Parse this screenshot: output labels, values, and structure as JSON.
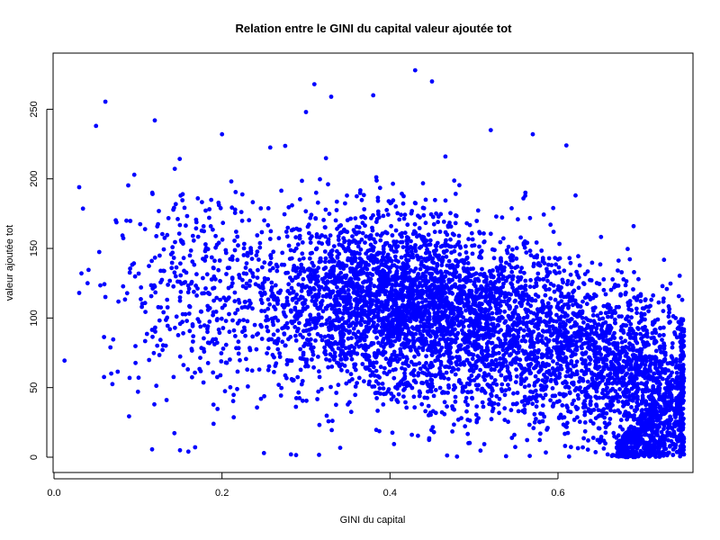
{
  "chart_data": {
    "type": "scatter",
    "title": "Relation entre le GINI du capital valeur ajoutée tot",
    "xlabel": "GINI du capital",
    "ylabel": "valeur ajoutée tot",
    "xlim": [
      0.0,
      0.75
    ],
    "ylim": [
      0,
      280
    ],
    "x_ticks": [
      "0.0",
      "0.2",
      "0.4",
      "0.6"
    ],
    "y_ticks": [
      "0",
      "50",
      "100",
      "150",
      "200",
      "250"
    ],
    "grid": false,
    "legend": "none",
    "point_color": "#0000ff",
    "points_note_values": [
      [
        0.03,
        194
      ],
      [
        0.05,
        238
      ],
      [
        0.12,
        242
      ],
      [
        0.2,
        232
      ],
      [
        0.3,
        248
      ],
      [
        0.31,
        268
      ],
      [
        0.33,
        259
      ],
      [
        0.38,
        260
      ],
      [
        0.43,
        278
      ],
      [
        0.45,
        270
      ],
      [
        0.52,
        235
      ],
      [
        0.57,
        232
      ],
      [
        0.61,
        224
      ],
      [
        0.15,
        5
      ],
      [
        0.16,
        4
      ],
      [
        0.25,
        3
      ],
      [
        0.03,
        118
      ],
      [
        0.04,
        125
      ],
      [
        0.1,
        47
      ],
      [
        0.09,
        57
      ],
      [
        0.72,
        5
      ],
      [
        0.75,
        2
      ],
      [
        0.74,
        100
      ],
      [
        0.69,
        166
      ]
    ],
    "cloud": [
      {
        "cx": 0.35,
        "cy": 110,
        "sx": 0.06,
        "sy": 32,
        "n": 1200
      },
      {
        "cx": 0.5,
        "cy": 95,
        "sx": 0.06,
        "sy": 32,
        "n": 1500
      },
      {
        "cx": 0.42,
        "cy": 115,
        "sx": 0.05,
        "sy": 30,
        "n": 800
      },
      {
        "cx": 0.63,
        "cy": 75,
        "sx": 0.05,
        "sy": 28,
        "n": 900
      },
      {
        "cx": 0.18,
        "cy": 120,
        "sx": 0.06,
        "sy": 38,
        "n": 450
      },
      {
        "cx": 0.7,
        "cy": 55,
        "sx": 0.03,
        "sy": 25,
        "n": 600
      }
    ]
  }
}
